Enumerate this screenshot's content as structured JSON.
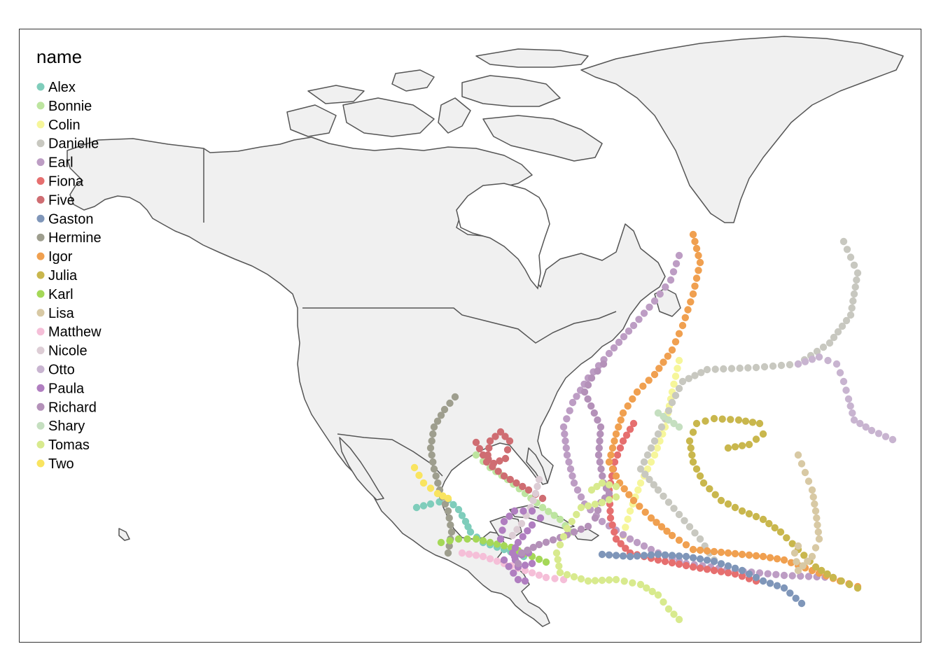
{
  "legend": {
    "title": "name",
    "entries": [
      {
        "label": "Alex",
        "color": "#7fcdbb"
      },
      {
        "label": "Bonnie",
        "color": "#bde5a0"
      },
      {
        "label": "Colin",
        "color": "#f6f69a"
      },
      {
        "label": "Danielle",
        "color": "#c8c8c0"
      },
      {
        "label": "Earl",
        "color": "#bd9dc4"
      },
      {
        "label": "Fiona",
        "color": "#e66f6f"
      },
      {
        "label": "Five",
        "color": "#cf6d72"
      },
      {
        "label": "Gaston",
        "color": "#7f96b9"
      },
      {
        "label": "Hermine",
        "color": "#9e9e8e"
      },
      {
        "label": "Igor",
        "color": "#f0a050"
      },
      {
        "label": "Julia",
        "color": "#c9b74d"
      },
      {
        "label": "Karl",
        "color": "#a5d858"
      },
      {
        "label": "Lisa",
        "color": "#d8c9a4"
      },
      {
        "label": "Matthew",
        "color": "#f5bfd8"
      },
      {
        "label": "Nicole",
        "color": "#ddcdd5"
      },
      {
        "label": "Otto",
        "color": "#c8b4d0"
      },
      {
        "label": "Paula",
        "color": "#b07ec0"
      },
      {
        "label": "Richard",
        "color": "#b491b9"
      },
      {
        "label": "Shary",
        "color": "#c5dfc0"
      },
      {
        "label": "Tomas",
        "color": "#d8ea8e"
      },
      {
        "label": "Two",
        "color": "#f9e460"
      }
    ]
  }
}
